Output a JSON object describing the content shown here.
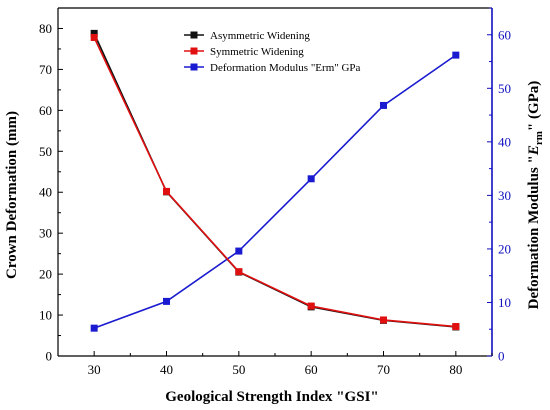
{
  "chart_data": {
    "type": "line",
    "x": [
      30,
      40,
      50,
      60,
      70,
      80
    ],
    "xlabel": "Geological Strength Index \"GSI\"",
    "xlim": [
      25,
      85
    ],
    "xticks": [
      "30",
      "40",
      "50",
      "60",
      "70",
      "80"
    ],
    "y_left": {
      "label": "Crown Deformation (mm)",
      "lim": [
        0,
        85
      ],
      "ticks": [
        "0",
        "10",
        "20",
        "30",
        "40",
        "50",
        "60",
        "70",
        "80"
      ]
    },
    "y_right": {
      "label_prefix": "Deformation Modulus \"",
      "label_var": "E",
      "label_sub": "rm",
      "label_suffix": "\" (GPa)",
      "lim": [
        0,
        65
      ],
      "ticks": [
        "0",
        "10",
        "20",
        "30",
        "40",
        "50",
        "60"
      ],
      "color": "#1010c0"
    },
    "series": [
      {
        "name": "Asymmetric Widening",
        "axis": "left",
        "color": "#111111",
        "values": [
          78.8,
          40.1,
          20.5,
          12.0,
          8.7,
          7.1
        ]
      },
      {
        "name": "Symmetric Widening",
        "axis": "left",
        "color": "#e01010",
        "values": [
          77.8,
          40.2,
          20.6,
          12.2,
          8.8,
          7.2
        ]
      },
      {
        "name": "Deformation Modulus \"Erm\" GPa",
        "axis": "right",
        "color": "#1a1ad0",
        "values": [
          5.2,
          10.2,
          19.6,
          33.1,
          46.8,
          56.2
        ]
      }
    ],
    "legend_position": "top-center",
    "grid": false
  }
}
